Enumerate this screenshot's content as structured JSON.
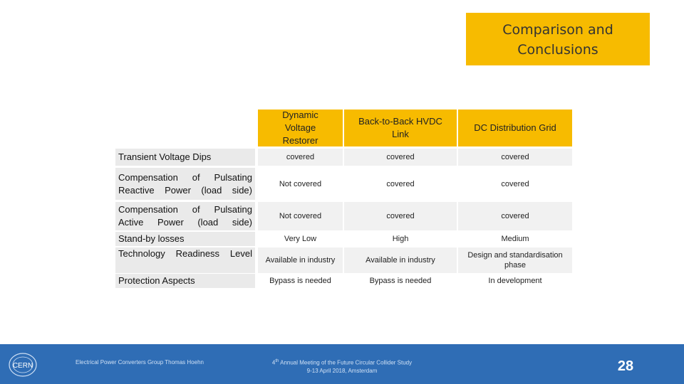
{
  "title": {
    "line1": "Comparison and",
    "line2": "Conclusions"
  },
  "table": {
    "headers": [
      "Dynamic Voltage Restorer",
      "Back-to-Back HVDC Link",
      "DC Distribution Grid"
    ],
    "rows": [
      {
        "label": "Transient Voltage Dips",
        "cells": [
          "covered",
          "covered",
          "covered"
        ]
      },
      {
        "label": "Compensation of Pulsating Reactive Power (load side)",
        "cells": [
          "Not covered",
          "covered",
          "covered"
        ]
      },
      {
        "label": "Compensation of Pulsating Active Power (load side)",
        "cells": [
          "Not covered",
          "covered",
          "covered"
        ]
      },
      {
        "label": "Stand-by losses",
        "cells": [
          "Very Low",
          "High",
          "Medium"
        ]
      },
      {
        "label": "Technology Readiness Level",
        "cells": [
          "Available in industry",
          "Available in industry",
          "Design and standardisation phase"
        ]
      },
      {
        "label": "Protection Aspects",
        "cells": [
          "Bypass is needed",
          "Bypass is needed",
          "In development"
        ]
      }
    ]
  },
  "footer": {
    "group": "Electrical Power Converters Group Thomas Hoehn",
    "meeting_prefix": "4",
    "meeting_sup": "th",
    "meeting_rest": " Annual Meeting of the Future Circular Collider Study",
    "meeting_dates": "9-13 April 2018, Amsterdam",
    "page": "28",
    "logo_text": "CERN"
  },
  "colors": {
    "accent": "#f7bb00",
    "footer": "#2f6db5"
  }
}
